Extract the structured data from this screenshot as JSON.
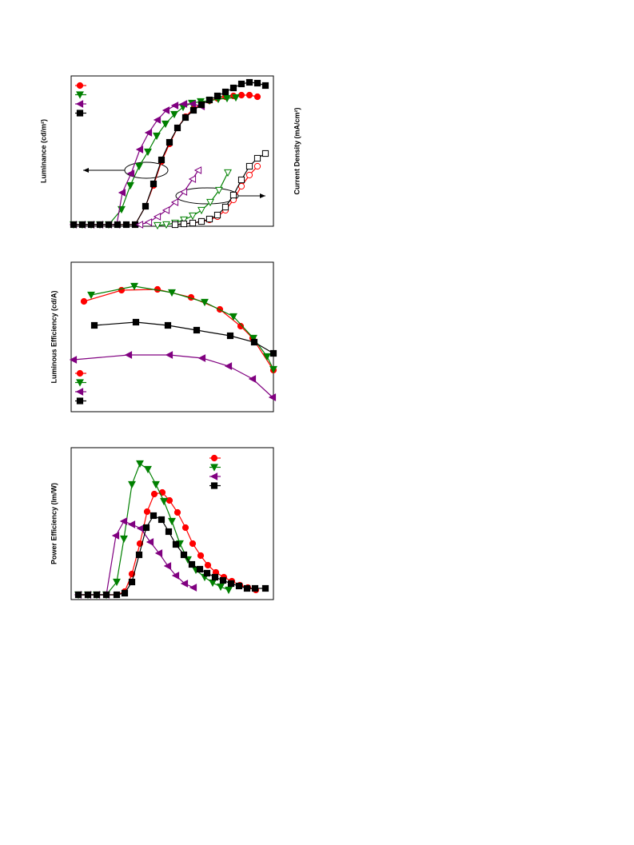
{
  "chart_data": [
    {
      "type": "line",
      "y_label": "Luminance (cd/m²)",
      "y2_label": "Current Density (mA/cm²)",
      "xlim": [
        0,
        253
      ],
      "ylim": [
        0,
        188
      ],
      "y2lim": [
        0,
        188
      ],
      "series": [
        {
          "color": "#ff0000",
          "marker": "circle",
          "filled": true,
          "x": [
            3,
            14,
            25,
            36,
            47,
            58,
            69,
            80,
            93,
            103,
            113,
            123,
            133,
            143,
            153,
            163,
            173,
            183,
            193,
            203,
            213,
            223,
            233
          ],
          "values": [
            2,
            2,
            2,
            2,
            2,
            2,
            2,
            2,
            25,
            51,
            81,
            103,
            123,
            137,
            147,
            153,
            157,
            160,
            162,
            163,
            164,
            164,
            162
          ]
        },
        {
          "color": "#008000",
          "marker": "tri-down",
          "filled": true,
          "x": [
            3,
            14,
            25,
            36,
            47,
            63,
            74,
            85,
            96,
            107,
            118,
            129,
            140,
            151,
            162,
            173,
            184,
            195,
            206
          ],
          "values": [
            2,
            2,
            2,
            2,
            2,
            21,
            51,
            75,
            93,
            113,
            128,
            140,
            149,
            154,
            156,
            157,
            159,
            160,
            161
          ]
        },
        {
          "color": "#800080",
          "marker": "tri-left",
          "filled": true,
          "x": [
            3,
            14,
            25,
            36,
            47,
            57,
            64,
            75,
            86,
            97,
            108,
            119,
            130,
            141,
            152,
            163
          ],
          "values": [
            2,
            2,
            2,
            2,
            2,
            2,
            42,
            66,
            96,
            117,
            133,
            145,
            151,
            153,
            153,
            150
          ]
        },
        {
          "color": "#000000",
          "marker": "square",
          "filled": true,
          "x": [
            3,
            14,
            25,
            36,
            47,
            58,
            69,
            80,
            93,
            103,
            113,
            123,
            133,
            143,
            153,
            163,
            173,
            183,
            193,
            203,
            213,
            223,
            233,
            243
          ],
          "values": [
            2,
            2,
            2,
            2,
            2,
            2,
            2,
            2,
            25,
            53,
            83,
            105,
            123,
            136,
            145,
            152,
            158,
            163,
            168,
            173,
            178,
            180,
            179,
            176
          ]
        },
        {
          "color": "#ff0000",
          "marker": "circle",
          "filled": false,
          "axis": "y2",
          "x": [
            130,
            141,
            152,
            163,
            173,
            183,
            193,
            203,
            213,
            223,
            233
          ],
          "values": [
            2,
            3,
            4,
            6,
            8,
            12,
            20,
            33,
            50,
            64,
            75
          ]
        },
        {
          "color": "#008000",
          "marker": "tri-down",
          "filled": false,
          "axis": "y2",
          "x": [
            108,
            119,
            130,
            141,
            152,
            163,
            174,
            185,
            196
          ],
          "values": [
            1,
            2,
            4,
            8,
            13,
            20,
            30,
            45,
            67
          ]
        },
        {
          "color": "#800080",
          "marker": "tri-left",
          "filled": false,
          "axis": "y2",
          "x": [
            86,
            97,
            108,
            119,
            130,
            141,
            152,
            159
          ],
          "values": [
            2,
            5,
            12,
            20,
            30,
            43,
            59,
            70
          ]
        },
        {
          "color": "#000000",
          "marker": "square",
          "filled": false,
          "axis": "y2",
          "x": [
            130,
            141,
            152,
            163,
            173,
            183,
            193,
            203,
            213,
            223,
            233,
            243
          ],
          "values": [
            2,
            3,
            4,
            6,
            9,
            14,
            24,
            39,
            58,
            75,
            85,
            91
          ]
        }
      ],
      "legend_series": [
        0,
        1,
        2,
        3
      ]
    },
    {
      "type": "line",
      "y_label": "Luminous Efficiency (cd/A)",
      "xlim": [
        0,
        253
      ],
      "ylim": [
        0,
        187
      ],
      "series": [
        {
          "color": "#ff0000",
          "marker": "circle",
          "filled": true,
          "x": [
            16,
            63,
            108,
            150,
            186,
            212,
            227,
            253
          ],
          "values": [
            138,
            152,
            153,
            143,
            128,
            107,
            92,
            52
          ]
        },
        {
          "color": "#008000",
          "marker": "tri-down",
          "filled": true,
          "x": [
            25,
            79,
            126,
            167,
            203,
            228,
            245,
            253
          ],
          "values": [
            146,
            157,
            149,
            137,
            119,
            92,
            69,
            53
          ]
        },
        {
          "color": "#800080",
          "marker": "tri-left",
          "filled": true,
          "x": [
            3,
            72,
            123,
            164,
            197,
            227,
            252
          ],
          "values": [
            65,
            71,
            71,
            67,
            57,
            41,
            18
          ]
        },
        {
          "color": "#000000",
          "marker": "square",
          "filled": true,
          "x": [
            29,
            81,
            121,
            157,
            199,
            229,
            253
          ],
          "values": [
            108,
            112,
            108,
            102,
            95,
            87,
            73
          ]
        }
      ],
      "legend_series": [
        0,
        1,
        2,
        3
      ]
    },
    {
      "type": "line",
      "y_label": "Power Efficiency (lm/W)",
      "xlim": [
        0,
        253
      ],
      "ylim": [
        0,
        190
      ],
      "series": [
        {
          "color": "#ff0000",
          "marker": "circle",
          "filled": true,
          "x": [
            9,
            21,
            32,
            44,
            57,
            67,
            76,
            86,
            95,
            104,
            114,
            123,
            133,
            143,
            152,
            162,
            171,
            181,
            191,
            201,
            211,
            221,
            231
          ],
          "values": [
            6,
            6,
            6,
            6,
            6,
            10,
            32,
            70,
            110,
            132,
            134,
            124,
            109,
            90,
            70,
            55,
            43,
            34,
            28,
            23,
            18,
            15,
            12
          ]
        },
        {
          "color": "#008000",
          "marker": "tri-down",
          "filled": true,
          "x": [
            9,
            21,
            32,
            44,
            57,
            66,
            76,
            86,
            96,
            106,
            116,
            126,
            136,
            146,
            156,
            167,
            177,
            187,
            197
          ],
          "values": [
            6,
            6,
            6,
            6,
            22,
            76,
            144,
            170,
            163,
            144,
            123,
            98,
            70,
            50,
            37,
            28,
            21,
            16,
            12
          ]
        },
        {
          "color": "#800080",
          "marker": "tri-left",
          "filled": true,
          "x": [
            9,
            21,
            32,
            44,
            56,
            66,
            76,
            87,
            99,
            110,
            121,
            131,
            142,
            153
          ],
          "values": [
            6,
            6,
            6,
            6,
            80,
            98,
            94,
            89,
            72,
            58,
            42,
            30,
            20,
            15
          ]
        },
        {
          "color": "#000000",
          "marker": "square",
          "filled": true,
          "x": [
            9,
            21,
            32,
            44,
            57,
            67,
            76,
            85,
            94,
            103,
            113,
            122,
            131,
            141,
            151,
            161,
            170,
            180,
            190,
            200,
            210,
            220,
            230,
            243
          ],
          "values": [
            6,
            6,
            6,
            6,
            6,
            8,
            22,
            56,
            90,
            105,
            100,
            85,
            69,
            56,
            44,
            38,
            33,
            28,
            24,
            20,
            17,
            14,
            14,
            14
          ]
        }
      ],
      "legend_series": [
        0,
        1,
        2,
        3
      ]
    }
  ]
}
